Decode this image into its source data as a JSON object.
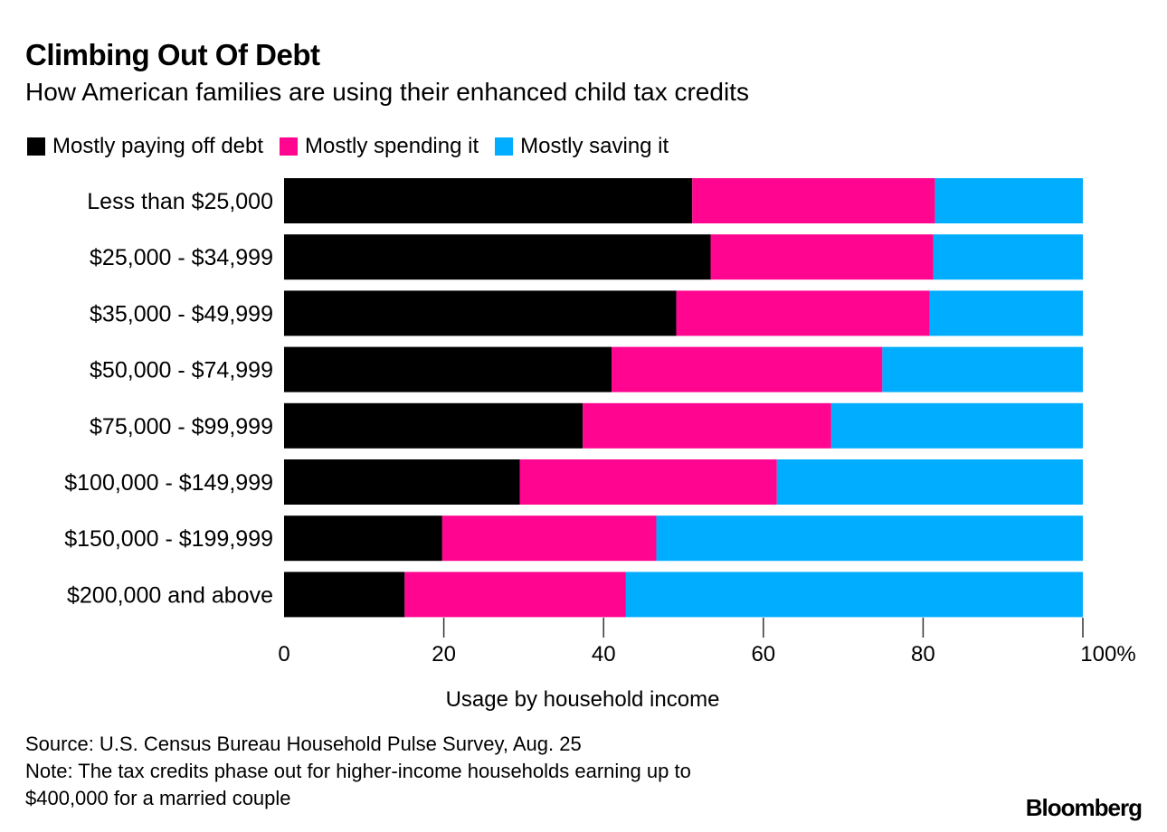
{
  "title": "Climbing Out Of Debt",
  "subtitle": "How American families are using their enhanced child tax credits",
  "source": "Source: U.S. Census Bureau Household Pulse Survey, Aug. 25",
  "note1": "Note: The tax credits phase out for higher-income households earning up to",
  "note2": "$400,000 for a married couple",
  "logo": "Bloomberg",
  "chart_data": {
    "type": "bar",
    "orientation": "horizontal",
    "stacked": true,
    "title": "Climbing Out Of Debt",
    "xlabel": "Usage by household income",
    "ylabel": "",
    "xlim": [
      0,
      100
    ],
    "xticks": [
      "0",
      "20",
      "40",
      "60",
      "80",
      "100%"
    ],
    "xtick_values": [
      0,
      20,
      40,
      60,
      80,
      100
    ],
    "legend_position": "top-left",
    "categories": [
      "Less than $25,000",
      "$25,000 - $34,999",
      "$35,000 - $49,999",
      "$50,000 - $74,999",
      "$75,000 - $99,999",
      "$100,000 - $149,999",
      "$150,000 - $199,999",
      "$200,000 and above"
    ],
    "series": [
      {
        "name": "Mostly paying off debt",
        "color": "#000000",
        "values": [
          51.1,
          53.4,
          49.1,
          41.0,
          37.4,
          29.5,
          19.8,
          15.1
        ]
      },
      {
        "name": "Mostly spending it",
        "color": "#ff0590",
        "values": [
          30.4,
          27.9,
          31.7,
          33.9,
          31.1,
          32.2,
          26.8,
          27.7
        ]
      },
      {
        "name": "Mostly saving it",
        "color": "#00adff",
        "values": [
          18.5,
          18.7,
          19.2,
          25.1,
          31.5,
          38.3,
          53.4,
          57.2
        ]
      }
    ]
  }
}
